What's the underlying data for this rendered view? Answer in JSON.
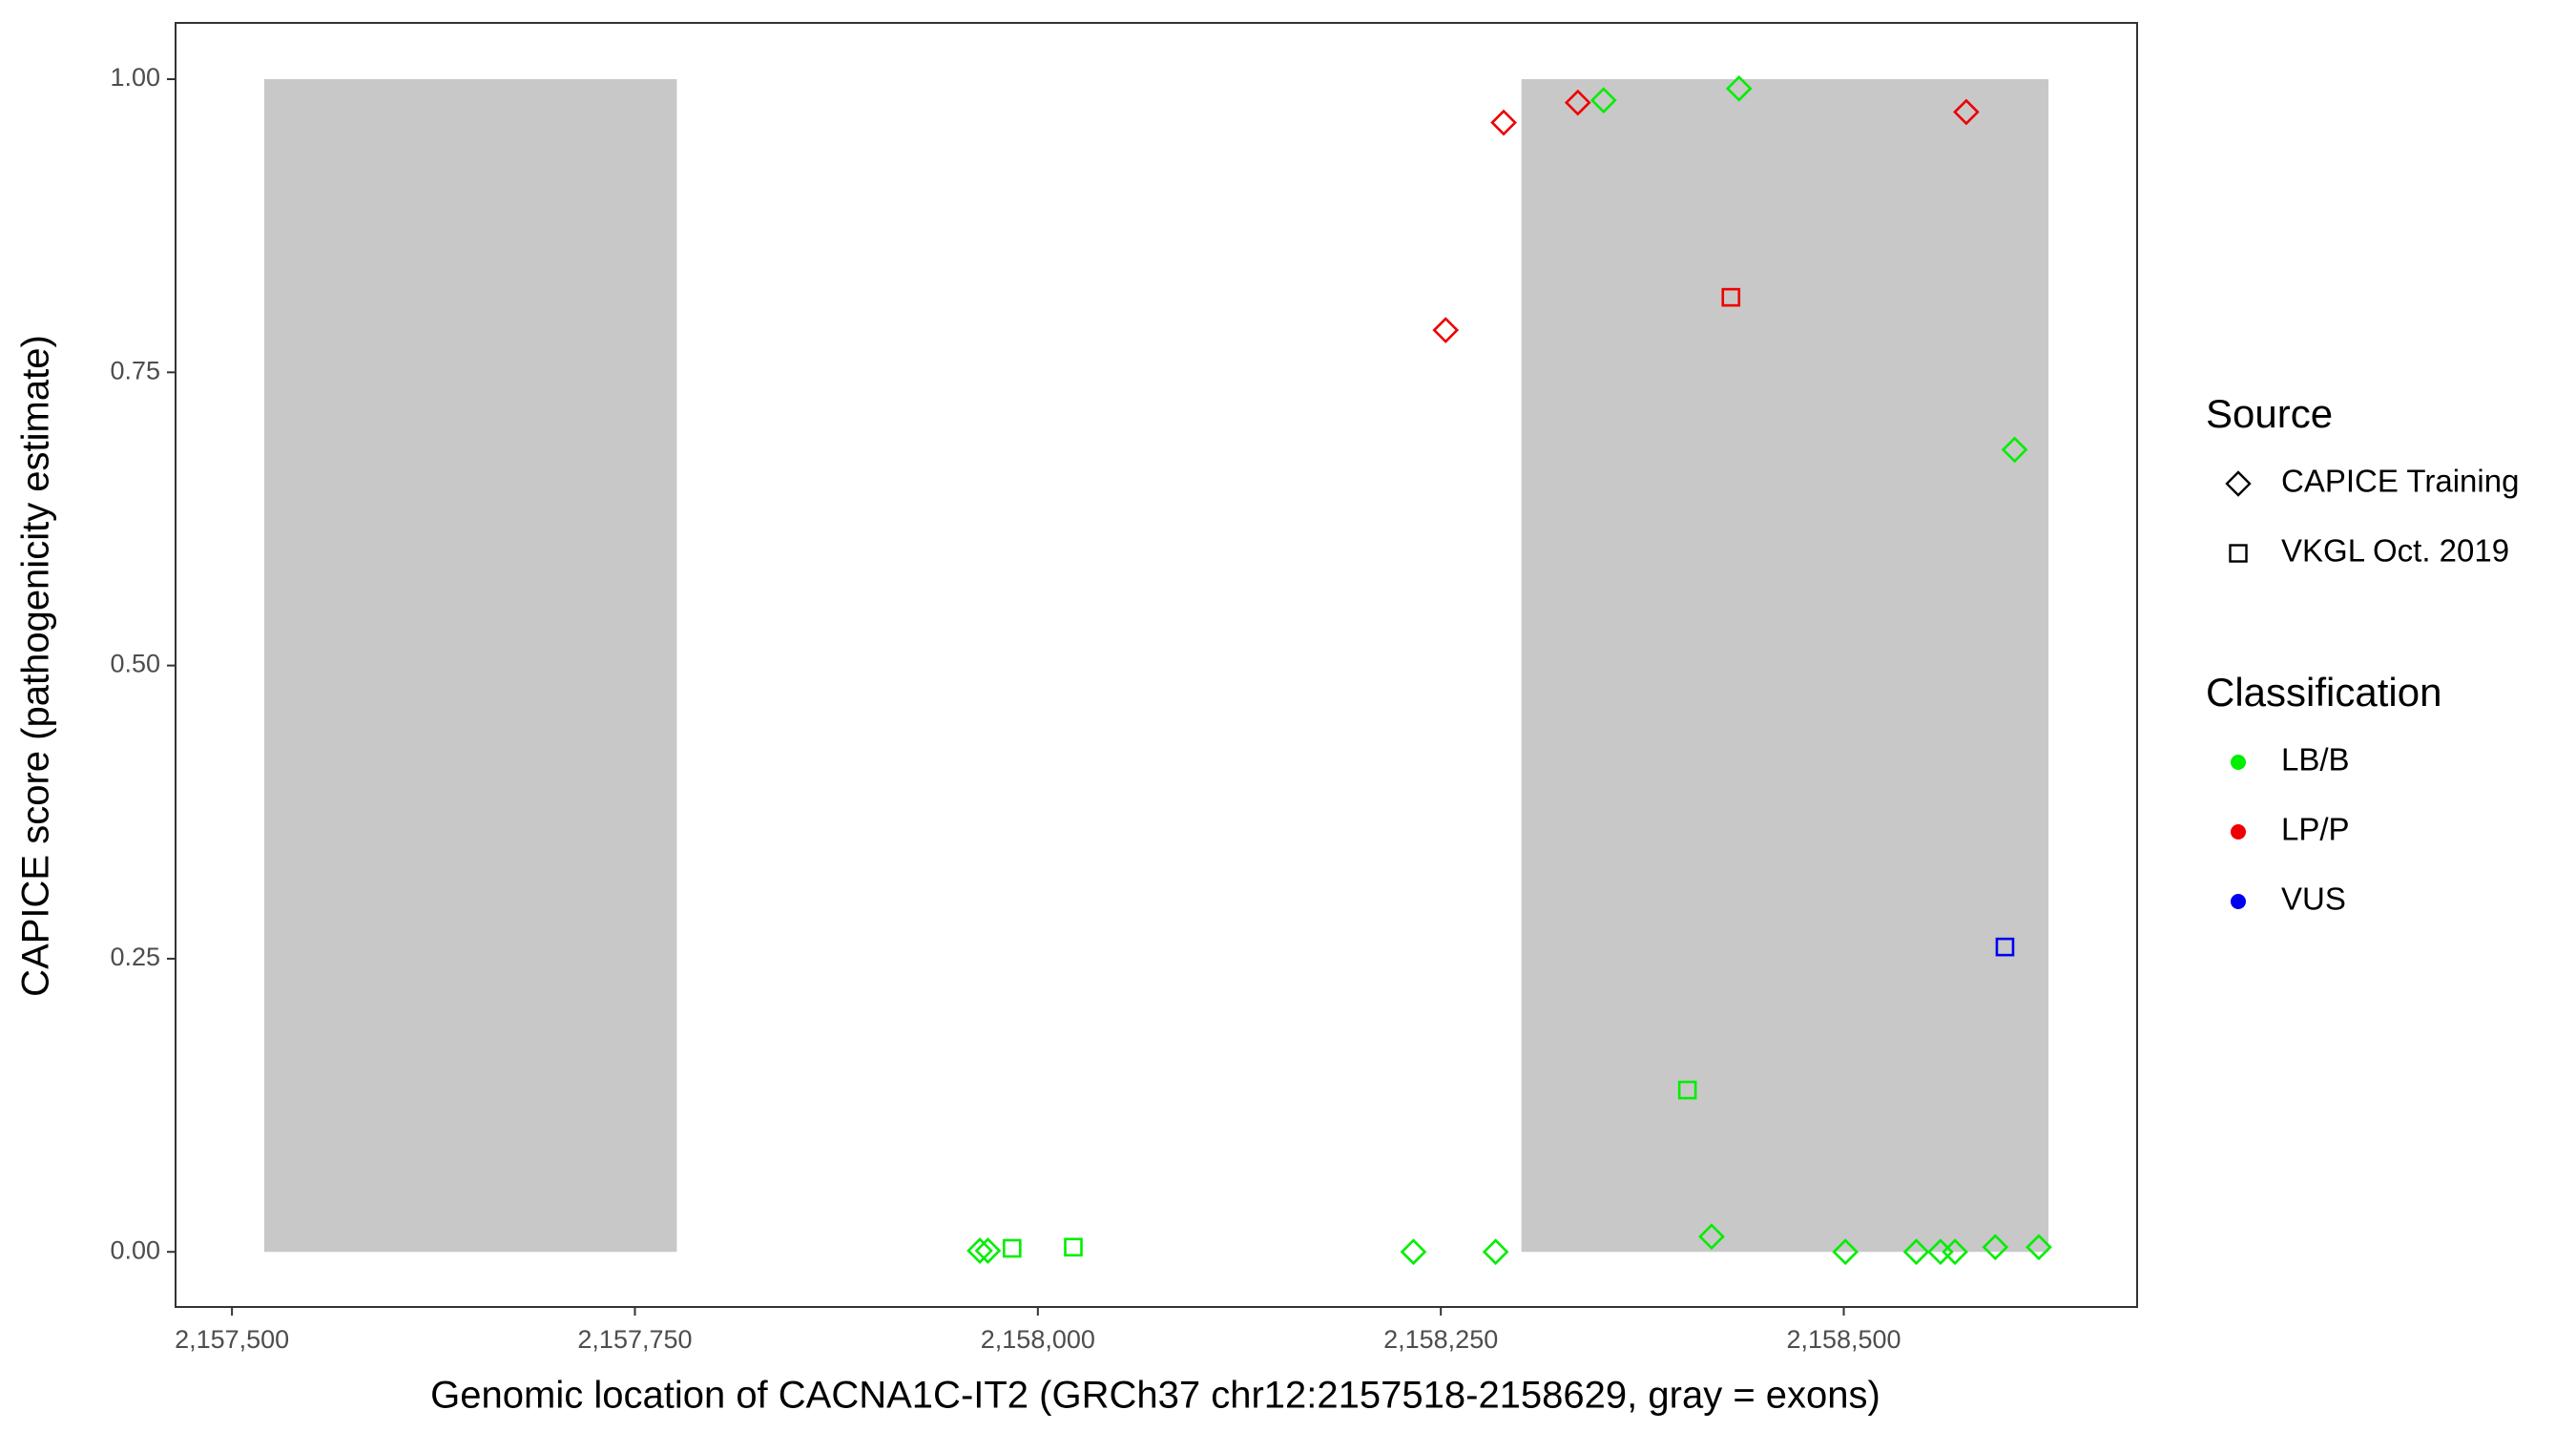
{
  "chart_data": {
    "type": "scatter",
    "x_label": "Genomic location of CACNA1C-IT2 (GRCh37 chr12:2157518-2158629, gray = exons)",
    "y_label": "CAPICE score (pathogenicity estimate)",
    "xlim": [
      2157465,
      2158682
    ],
    "ylim": [
      -0.047,
      1.048
    ],
    "xticks": [
      {
        "value": 2157500,
        "label": "2,157,500"
      },
      {
        "value": 2157750,
        "label": "2,157,750"
      },
      {
        "value": 2158000,
        "label": "2,158,000"
      },
      {
        "value": 2158250,
        "label": "2,158,250"
      },
      {
        "value": 2158500,
        "label": "2,158,500"
      }
    ],
    "yticks": [
      {
        "value": 0,
        "label": "0.00"
      },
      0.25,
      {
        "value": 0.5,
        "label": "0.50"
      },
      0.75,
      {
        "value": 1,
        "label": "1.00"
      }
    ],
    "shaded_regions": [
      {
        "x": [
          2157520,
          2157776
        ],
        "y": [
          0,
          1
        ],
        "color": "#c8c8c8"
      },
      {
        "x": [
          2158300,
          2158627
        ],
        "y": [
          0,
          1
        ],
        "color": "#c8c8c8"
      }
    ],
    "legends": [
      {
        "title": "Source",
        "items": [
          {
            "name": "CAPICE Training",
            "shape": "diamond"
          },
          {
            "name": "VKGL Oct. 2019",
            "shape": "square"
          }
        ]
      },
      {
        "title": "Classification",
        "items": [
          {
            "name": "LB/B",
            "color": "#00ee00"
          },
          {
            "name": "LP/P",
            "color": "#ee0000"
          },
          {
            "name": "VUS",
            "color": "#0000ee"
          }
        ]
      }
    ],
    "series": [
      {
        "shape": "diamond",
        "color": "#00ee00",
        "x": [
          2158351,
          2158435,
          2158606,
          2158418,
          2157964,
          2157969,
          2158233,
          2158284,
          2158501,
          2158545,
          2158560,
          2158569,
          2158594,
          2158621
        ],
        "values": [
          0.982,
          0.992,
          0.684,
          0.013,
          0.001,
          0.001,
          0,
          0,
          0,
          0,
          0,
          0,
          0.004,
          0.004
        ]
      },
      {
        "shape": "diamond",
        "color": "#ee0000",
        "x": [
          2158253,
          2158289,
          2158335,
          2158576
        ],
        "values": [
          0.786,
          0.963,
          0.98,
          0.972
        ]
      },
      {
        "shape": "square",
        "color": "#00ee00",
        "x": [
          2158403,
          2157984,
          2158022
        ],
        "values": [
          0.138,
          0.003,
          0.004
        ]
      },
      {
        "shape": "square",
        "color": "#ee0000",
        "x": [
          2158430
        ],
        "values": [
          0.814
        ]
      },
      {
        "shape": "square",
        "color": "#0000ee",
        "x": [
          2158600
        ],
        "values": [
          0.26
        ]
      }
    ]
  }
}
